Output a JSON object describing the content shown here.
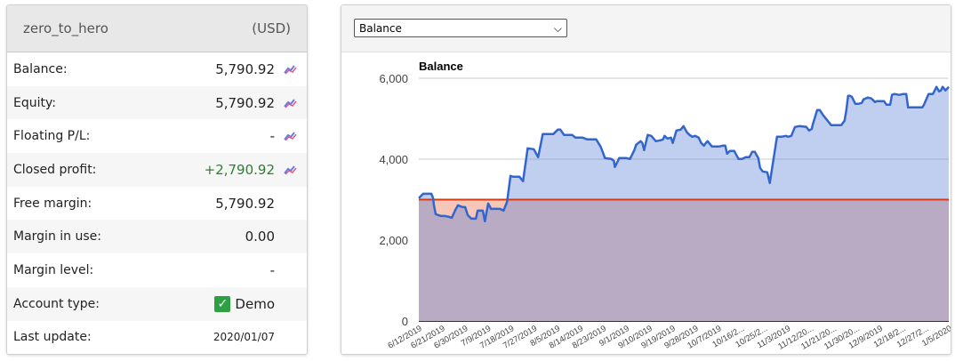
{
  "account": {
    "name": "zero_to_hero",
    "currency": "(USD)",
    "rows": [
      {
        "label": "Balance:",
        "value": "5,790.92",
        "icon": "chart-line-icon"
      },
      {
        "label": "Equity:",
        "value": "5,790.92",
        "icon": "chart-line-icon"
      },
      {
        "label": "Floating P/L:",
        "value": "-",
        "icon": "chart-line-icon"
      },
      {
        "label": "Closed profit:",
        "value": "+2,790.92",
        "icon": "chart-line-icon"
      },
      {
        "label": "Free margin:",
        "value": "5,790.92"
      },
      {
        "label": "Margin in use:",
        "value": "0.00"
      },
      {
        "label": "Margin level:",
        "value": "-"
      },
      {
        "label": "Account type:",
        "value": "Demo",
        "icon": "checkbox-checked-icon"
      },
      {
        "label": "Last update:",
        "value": "2020/01/07"
      }
    ]
  },
  "chart_selector": {
    "selected": "Balance"
  },
  "colors": {
    "line": "#3366cc",
    "baseline": "#dc3912",
    "positive_rgba": "rgba(90,130,215,0.38)",
    "negative": "#f6c6b8",
    "profit_green": "#2e7d32"
  },
  "chart_data": {
    "type": "area",
    "title": "Balance",
    "xlabel": "",
    "ylabel": "",
    "ylim": [
      0,
      6000
    ],
    "yticks": [
      "0",
      "2,000",
      "4,000",
      "6,000"
    ],
    "ytick_values": [
      0,
      2000,
      4000,
      6000
    ],
    "baseline": 3000,
    "x_start": "6/12/2019",
    "x_days": 207,
    "xtick_labels": [
      "6/12/2019",
      "6/21/2019",
      "6/30/2019",
      "7/9/2019",
      "7/18/2019",
      "7/27/2019",
      "8/5/2019",
      "8/14/2019",
      "8/23/2019",
      "9/1/2019",
      "9/10/2019",
      "9/19/2019",
      "9/28/2019",
      "10/7/2019",
      "10/16/2...",
      "10/25/2...",
      "11/3/2019",
      "11/12/20...",
      "11/21/20...",
      "11/30/20...",
      "12/9/2019",
      "12/18/2...",
      "12/27/2...",
      "1/5/2020"
    ],
    "series": [
      {
        "name": "Balance",
        "points": [
          [
            0,
            3036
          ],
          [
            1.7,
            3146
          ],
          [
            4.9,
            3146
          ],
          [
            5.6,
            3036
          ],
          [
            5.9,
            2860
          ],
          [
            6.6,
            2640
          ],
          [
            8.7,
            2596
          ],
          [
            10.1,
            2596
          ],
          [
            11.8,
            2574
          ],
          [
            12.9,
            2552
          ],
          [
            14.3,
            2750
          ],
          [
            15.3,
            2860
          ],
          [
            17.1,
            2816
          ],
          [
            18.1,
            2816
          ],
          [
            19.1,
            2618
          ],
          [
            20.5,
            2530
          ],
          [
            22.3,
            2530
          ],
          [
            23,
            2728
          ],
          [
            25,
            2728
          ],
          [
            25.8,
            2464
          ],
          [
            27.1,
            2904
          ],
          [
            28.2,
            2772
          ],
          [
            29.6,
            2772
          ],
          [
            31.7,
            2772
          ],
          [
            33.1,
            2728
          ],
          [
            34.5,
            2948
          ],
          [
            35.8,
            3586
          ],
          [
            36.9,
            3564
          ],
          [
            39.3,
            3564
          ],
          [
            40.7,
            3454
          ],
          [
            42.5,
            4268
          ],
          [
            44.9,
            4246
          ],
          [
            46.6,
            4048
          ],
          [
            48.4,
            4620
          ],
          [
            52.5,
            4620
          ],
          [
            54.3,
            4730
          ],
          [
            55.3,
            4730
          ],
          [
            56.7,
            4598
          ],
          [
            59.9,
            4598
          ],
          [
            61.2,
            4532
          ],
          [
            64,
            4532
          ],
          [
            65.8,
            4488
          ],
          [
            69.3,
            4488
          ],
          [
            71,
            4312
          ],
          [
            71.7,
            4202
          ],
          [
            72.7,
            4026
          ],
          [
            75.2,
            4004
          ],
          [
            76.2,
            3960
          ],
          [
            76.6,
            3806
          ],
          [
            78.3,
            4026
          ],
          [
            81.1,
            4026
          ],
          [
            82.5,
            4004
          ],
          [
            84.2,
            4224
          ],
          [
            84.9,
            4356
          ],
          [
            86.7,
            4444
          ],
          [
            87.3,
            4400
          ],
          [
            88,
            4224
          ],
          [
            89.4,
            4598
          ],
          [
            90.8,
            4576
          ],
          [
            92.6,
            4444
          ],
          [
            94.3,
            4466
          ],
          [
            95.4,
            4488
          ],
          [
            96,
            4576
          ],
          [
            97.1,
            4510
          ],
          [
            98.5,
            4532
          ],
          [
            99.2,
            4400
          ],
          [
            100.6,
            4708
          ],
          [
            102.3,
            4730
          ],
          [
            103.4,
            4818
          ],
          [
            104.7,
            4664
          ],
          [
            105.8,
            4598
          ],
          [
            106.8,
            4554
          ],
          [
            107.9,
            4576
          ],
          [
            109.3,
            4532
          ],
          [
            110.3,
            4400
          ],
          [
            111.4,
            4334
          ],
          [
            112.1,
            4400
          ],
          [
            112.8,
            4444
          ],
          [
            114.5,
            4312
          ],
          [
            117.3,
            4312
          ],
          [
            118.7,
            4334
          ],
          [
            119.7,
            4334
          ],
          [
            120.4,
            4136
          ],
          [
            121.5,
            4202
          ],
          [
            123.2,
            4202
          ],
          [
            124.9,
            4004
          ],
          [
            126.3,
            4004
          ],
          [
            127.7,
            4048
          ],
          [
            129.1,
            4048
          ],
          [
            130.2,
            4180
          ],
          [
            131.2,
            4180
          ],
          [
            132.6,
            4026
          ],
          [
            133.3,
            3784
          ],
          [
            134.3,
            3696
          ],
          [
            136.1,
            3674
          ],
          [
            137.1,
            3410
          ],
          [
            139.9,
            4554
          ],
          [
            141.6,
            4554
          ],
          [
            143.4,
            4576
          ],
          [
            144.1,
            4554
          ],
          [
            145.5,
            4576
          ],
          [
            146.9,
            4796
          ],
          [
            148.6,
            4818
          ],
          [
            151.4,
            4796
          ],
          [
            152.4,
            4708
          ],
          [
            153.5,
            4752
          ],
          [
            153.8,
            4840
          ],
          [
            155.6,
            5214
          ],
          [
            156.6,
            5214
          ],
          [
            158,
            5082
          ],
          [
            159.7,
            4950
          ],
          [
            161.1,
            4840
          ],
          [
            165,
            4840
          ],
          [
            166.3,
            4950
          ],
          [
            167,
            5214
          ],
          [
            167.7,
            5566
          ],
          [
            168.4,
            5566
          ],
          [
            169.1,
            5544
          ],
          [
            170.5,
            5368
          ],
          [
            171.6,
            5368
          ],
          [
            173,
            5390
          ],
          [
            173.7,
            5478
          ],
          [
            175.4,
            5522
          ],
          [
            176.8,
            5500
          ],
          [
            178.2,
            5412
          ],
          [
            178.9,
            5434
          ],
          [
            181.7,
            5434
          ],
          [
            182.7,
            5346
          ],
          [
            184.1,
            5346
          ],
          [
            184.8,
            5588
          ],
          [
            185.8,
            5610
          ],
          [
            187.6,
            5588
          ],
          [
            189.3,
            5610
          ],
          [
            190.4,
            5610
          ],
          [
            191.1,
            5280
          ],
          [
            194.5,
            5280
          ],
          [
            196.6,
            5280
          ],
          [
            197.3,
            5346
          ],
          [
            199.1,
            5610
          ],
          [
            200.8,
            5610
          ],
          [
            201.5,
            5698
          ],
          [
            202.2,
            5786
          ],
          [
            203.2,
            5676
          ],
          [
            203.9,
            5698
          ],
          [
            204.6,
            5786
          ],
          [
            205.7,
            5698
          ],
          [
            207,
            5786
          ]
        ]
      }
    ]
  }
}
